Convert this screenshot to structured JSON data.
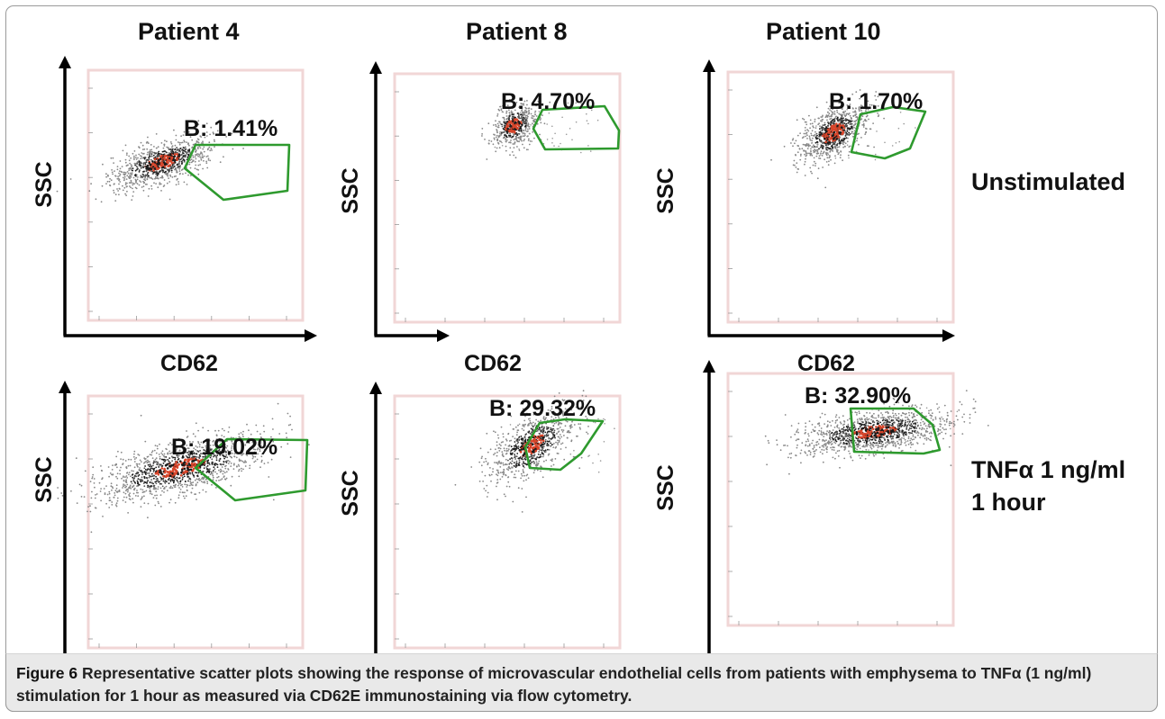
{
  "figure": {
    "column_titles": [
      "Patient 4",
      "Patient 8",
      "Patient 10"
    ],
    "row_labels": {
      "unstimulated": "Unstimulated",
      "tnf_line1": "TNFα 1 ng/ml",
      "tnf_line2": "1 hour"
    },
    "caption_label": "Figure 6",
    "caption_text": "Representative scatter plots showing the response of microvascular endothelial cells from patients with emphysema to TNFα (1 ng/ml) stimulation for 1 hour as measured via CD62E immunostaining via flow cytometry.",
    "gate_color": "#2e9a2e",
    "dot_colors": [
      "#1a1a1a",
      "#555555",
      "#d8452a"
    ],
    "plot_background": "#ffffff"
  },
  "chart_data": [
    {
      "type": "scatter",
      "panel": "Patient 4 - Unstimulated",
      "xlabel": "CD62",
      "ylabel": "SSC",
      "gate_label": "B: 1.41%",
      "gate_percent": 1.41
    },
    {
      "type": "scatter",
      "panel": "Patient 8 - Unstimulated",
      "xlabel": "CD62",
      "ylabel": "SSC",
      "gate_label": "B: 4.70%",
      "gate_percent": 4.7
    },
    {
      "type": "scatter",
      "panel": "Patient 10 - Unstimulated",
      "xlabel": "CD62",
      "ylabel": "SSC",
      "gate_label": "B: 1.70%",
      "gate_percent": 1.7
    },
    {
      "type": "scatter",
      "panel": "Patient 4 - TNFα 1 ng/ml 1 hour",
      "xlabel": "CD62",
      "ylabel": "SSC",
      "gate_label": "B: 19.02%",
      "gate_percent": 19.02
    },
    {
      "type": "scatter",
      "panel": "Patient 8 - TNFα 1 ng/ml 1 hour",
      "xlabel": "CD62",
      "ylabel": "SSC",
      "gate_label": "B: 29.32%",
      "gate_percent": 29.32
    },
    {
      "type": "scatter",
      "panel": "Patient 10 - TNFα 1 ng/ml 1 hour",
      "xlabel": "CD62",
      "ylabel": "SSC",
      "gate_label": "B: 32.90%",
      "gate_percent": 32.9
    }
  ]
}
